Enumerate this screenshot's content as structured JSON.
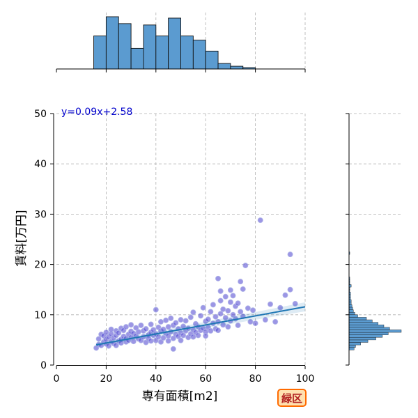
{
  "chart_data": {
    "type": "scatter",
    "xlabel": "専有面積[m2]",
    "ylabel": "賃料[万円]",
    "xlim": [
      0,
      100
    ],
    "ylim": [
      0,
      50
    ],
    "x_ticks": [
      0,
      20,
      40,
      60,
      80,
      100
    ],
    "y_ticks": [
      0,
      10,
      20,
      30,
      40,
      50
    ],
    "grid": true,
    "regression": {
      "label": "y=0.09x+2.58",
      "slope": 0.09,
      "intercept": 2.58,
      "x_range": [
        16,
        100
      ]
    },
    "points": [
      [
        16,
        3.4
      ],
      [
        17,
        4.1
      ],
      [
        17,
        5.2
      ],
      [
        18,
        3.9
      ],
      [
        18,
        6.1
      ],
      [
        19,
        4.6
      ],
      [
        19,
        5.8
      ],
      [
        20,
        4.2
      ],
      [
        20,
        5.1
      ],
      [
        20,
        6.5
      ],
      [
        21,
        3.8
      ],
      [
        21,
        5.6
      ],
      [
        22,
        4.7
      ],
      [
        22,
        6.2
      ],
      [
        22,
        7.1
      ],
      [
        23,
        4.3
      ],
      [
        23,
        5.4
      ],
      [
        24,
        5.9
      ],
      [
        24,
        6.8
      ],
      [
        24,
        3.9
      ],
      [
        25,
        4.8
      ],
      [
        25,
        6.4
      ],
      [
        26,
        5.1
      ],
      [
        26,
        7.3
      ],
      [
        26,
        4.4
      ],
      [
        27,
        5.7
      ],
      [
        27,
        6.9
      ],
      [
        28,
        4.6
      ],
      [
        28,
        5.3
      ],
      [
        28,
        7.6
      ],
      [
        29,
        6.1
      ],
      [
        29,
        4.9
      ],
      [
        30,
        5.5
      ],
      [
        30,
        6.7
      ],
      [
        30,
        8.0
      ],
      [
        31,
        4.7
      ],
      [
        31,
        6.3
      ],
      [
        32,
        5.8
      ],
      [
        32,
        7.4
      ],
      [
        33,
        5.2
      ],
      [
        33,
        6.6
      ],
      [
        34,
        4.9
      ],
      [
        34,
        7.9
      ],
      [
        35,
        5.6
      ],
      [
        35,
        6.8
      ],
      [
        36,
        4.5
      ],
      [
        36,
        7.2
      ],
      [
        37,
        6.0
      ],
      [
        37,
        5.3
      ],
      [
        38,
        6.5
      ],
      [
        38,
        8.1
      ],
      [
        38,
        4.8
      ],
      [
        39,
        7.0
      ],
      [
        39,
        5.9
      ],
      [
        40,
        11.0
      ],
      [
        40,
        6.2
      ],
      [
        40,
        4.9
      ],
      [
        41,
        7.5
      ],
      [
        41,
        5.6
      ],
      [
        42,
        6.8
      ],
      [
        42,
        8.6
      ],
      [
        42,
        4.6
      ],
      [
        43,
        7.1
      ],
      [
        43,
        5.4
      ],
      [
        44,
        6.3
      ],
      [
        44,
        8.9
      ],
      [
        45,
        5.8
      ],
      [
        45,
        7.6
      ],
      [
        45,
        4.8
      ],
      [
        46,
        6.6
      ],
      [
        46,
        9.3
      ],
      [
        47,
        5.3
      ],
      [
        47,
        7.9
      ],
      [
        47,
        3.2
      ],
      [
        48,
        6.1
      ],
      [
        48,
        8.4
      ],
      [
        49,
        5.7
      ],
      [
        49,
        7.2
      ],
      [
        50,
        6.4
      ],
      [
        50,
        9.0
      ],
      [
        50,
        4.9
      ],
      [
        51,
        7.7
      ],
      [
        51,
        5.9
      ],
      [
        52,
        6.8
      ],
      [
        52,
        8.8
      ],
      [
        53,
        5.5
      ],
      [
        53,
        7.3
      ],
      [
        54,
        6.2
      ],
      [
        54,
        9.5
      ],
      [
        55,
        7.0
      ],
      [
        55,
        5.6
      ],
      [
        55,
        10.5
      ],
      [
        56,
        6.5
      ],
      [
        56,
        8.2
      ],
      [
        57,
        7.6
      ],
      [
        57,
        5.9
      ],
      [
        58,
        6.9
      ],
      [
        58,
        9.8
      ],
      [
        59,
        7.3
      ],
      [
        59,
        11.4
      ],
      [
        60,
        6.6
      ],
      [
        60,
        8.7
      ],
      [
        60,
        5.8
      ],
      [
        61,
        9.1
      ],
      [
        61,
        7.5
      ],
      [
        62,
        6.8
      ],
      [
        62,
        10.6
      ],
      [
        63,
        8.3
      ],
      [
        63,
        12.0
      ],
      [
        64,
        7.2
      ],
      [
        64,
        9.6
      ],
      [
        65,
        8.6
      ],
      [
        65,
        6.9
      ],
      [
        65,
        17.2
      ],
      [
        66,
        10.2
      ],
      [
        66,
        12.8
      ],
      [
        66,
        14.7
      ],
      [
        67,
        8.0
      ],
      [
        67,
        11.1
      ],
      [
        68,
        9.4
      ],
      [
        68,
        13.6
      ],
      [
        69,
        7.6
      ],
      [
        69,
        10.8
      ],
      [
        70,
        8.8
      ],
      [
        70,
        12.5
      ],
      [
        70,
        14.9
      ],
      [
        71,
        10.0
      ],
      [
        71,
        13.8
      ],
      [
        72,
        9.2
      ],
      [
        72,
        11.7
      ],
      [
        73,
        7.9
      ],
      [
        73,
        12.3
      ],
      [
        74,
        10.6
      ],
      [
        74,
        16.6
      ],
      [
        75,
        15.1
      ],
      [
        75,
        9.7
      ],
      [
        76,
        19.8
      ],
      [
        77,
        11.3
      ],
      [
        78,
        8.6
      ],
      [
        79,
        10.9
      ],
      [
        80,
        8.3
      ],
      [
        82,
        28.8
      ],
      [
        84,
        9.0
      ],
      [
        86,
        12.1
      ],
      [
        88,
        8.6
      ],
      [
        90,
        11.4
      ],
      [
        92,
        13.9
      ],
      [
        94,
        15.0
      ],
      [
        94,
        22.0
      ],
      [
        96,
        12.2
      ]
    ],
    "top_histogram": {
      "bin_edges": [
        0,
        5,
        10,
        15,
        20,
        25,
        30,
        35,
        40,
        45,
        50,
        55,
        60,
        65,
        70,
        75,
        80,
        85,
        90,
        95,
        100
      ],
      "counts": [
        0,
        0,
        0,
        24,
        38,
        33,
        15,
        32,
        24,
        37,
        24,
        21,
        13,
        4,
        2,
        1,
        0,
        0,
        0,
        0
      ]
    },
    "right_histogram": {
      "bin_edges": [
        3,
        3.5,
        4,
        4.5,
        5,
        5.5,
        6,
        6.5,
        7,
        7.5,
        8,
        8.5,
        9,
        9.5,
        10,
        10.5,
        11,
        11.5,
        12,
        12.5,
        13,
        13.5,
        14,
        14.5,
        15,
        15.5,
        16,
        16.5,
        17,
        17.5,
        18,
        18.5,
        19,
        19.5,
        20,
        20.5,
        21,
        21.5,
        22,
        22.5
      ],
      "counts": [
        7,
        9,
        16,
        26,
        37,
        46,
        54,
        72,
        56,
        48,
        40,
        32,
        24,
        12,
        8,
        6,
        5,
        4,
        3,
        3,
        2,
        2,
        2,
        1,
        1,
        3,
        1,
        1,
        1,
        0,
        0,
        0,
        0,
        0,
        0,
        0,
        0,
        0,
        1,
        0
      ]
    },
    "colors": {
      "point_fill": "#4b3fd0",
      "point_edge": "#b0b6e8",
      "regression_line": "#1f77b4",
      "histogram_fill": "#5b9bd0",
      "histogram_edge": "#111111",
      "grid": "#b0b0b0"
    }
  },
  "badge": {
    "label": "緑区"
  }
}
